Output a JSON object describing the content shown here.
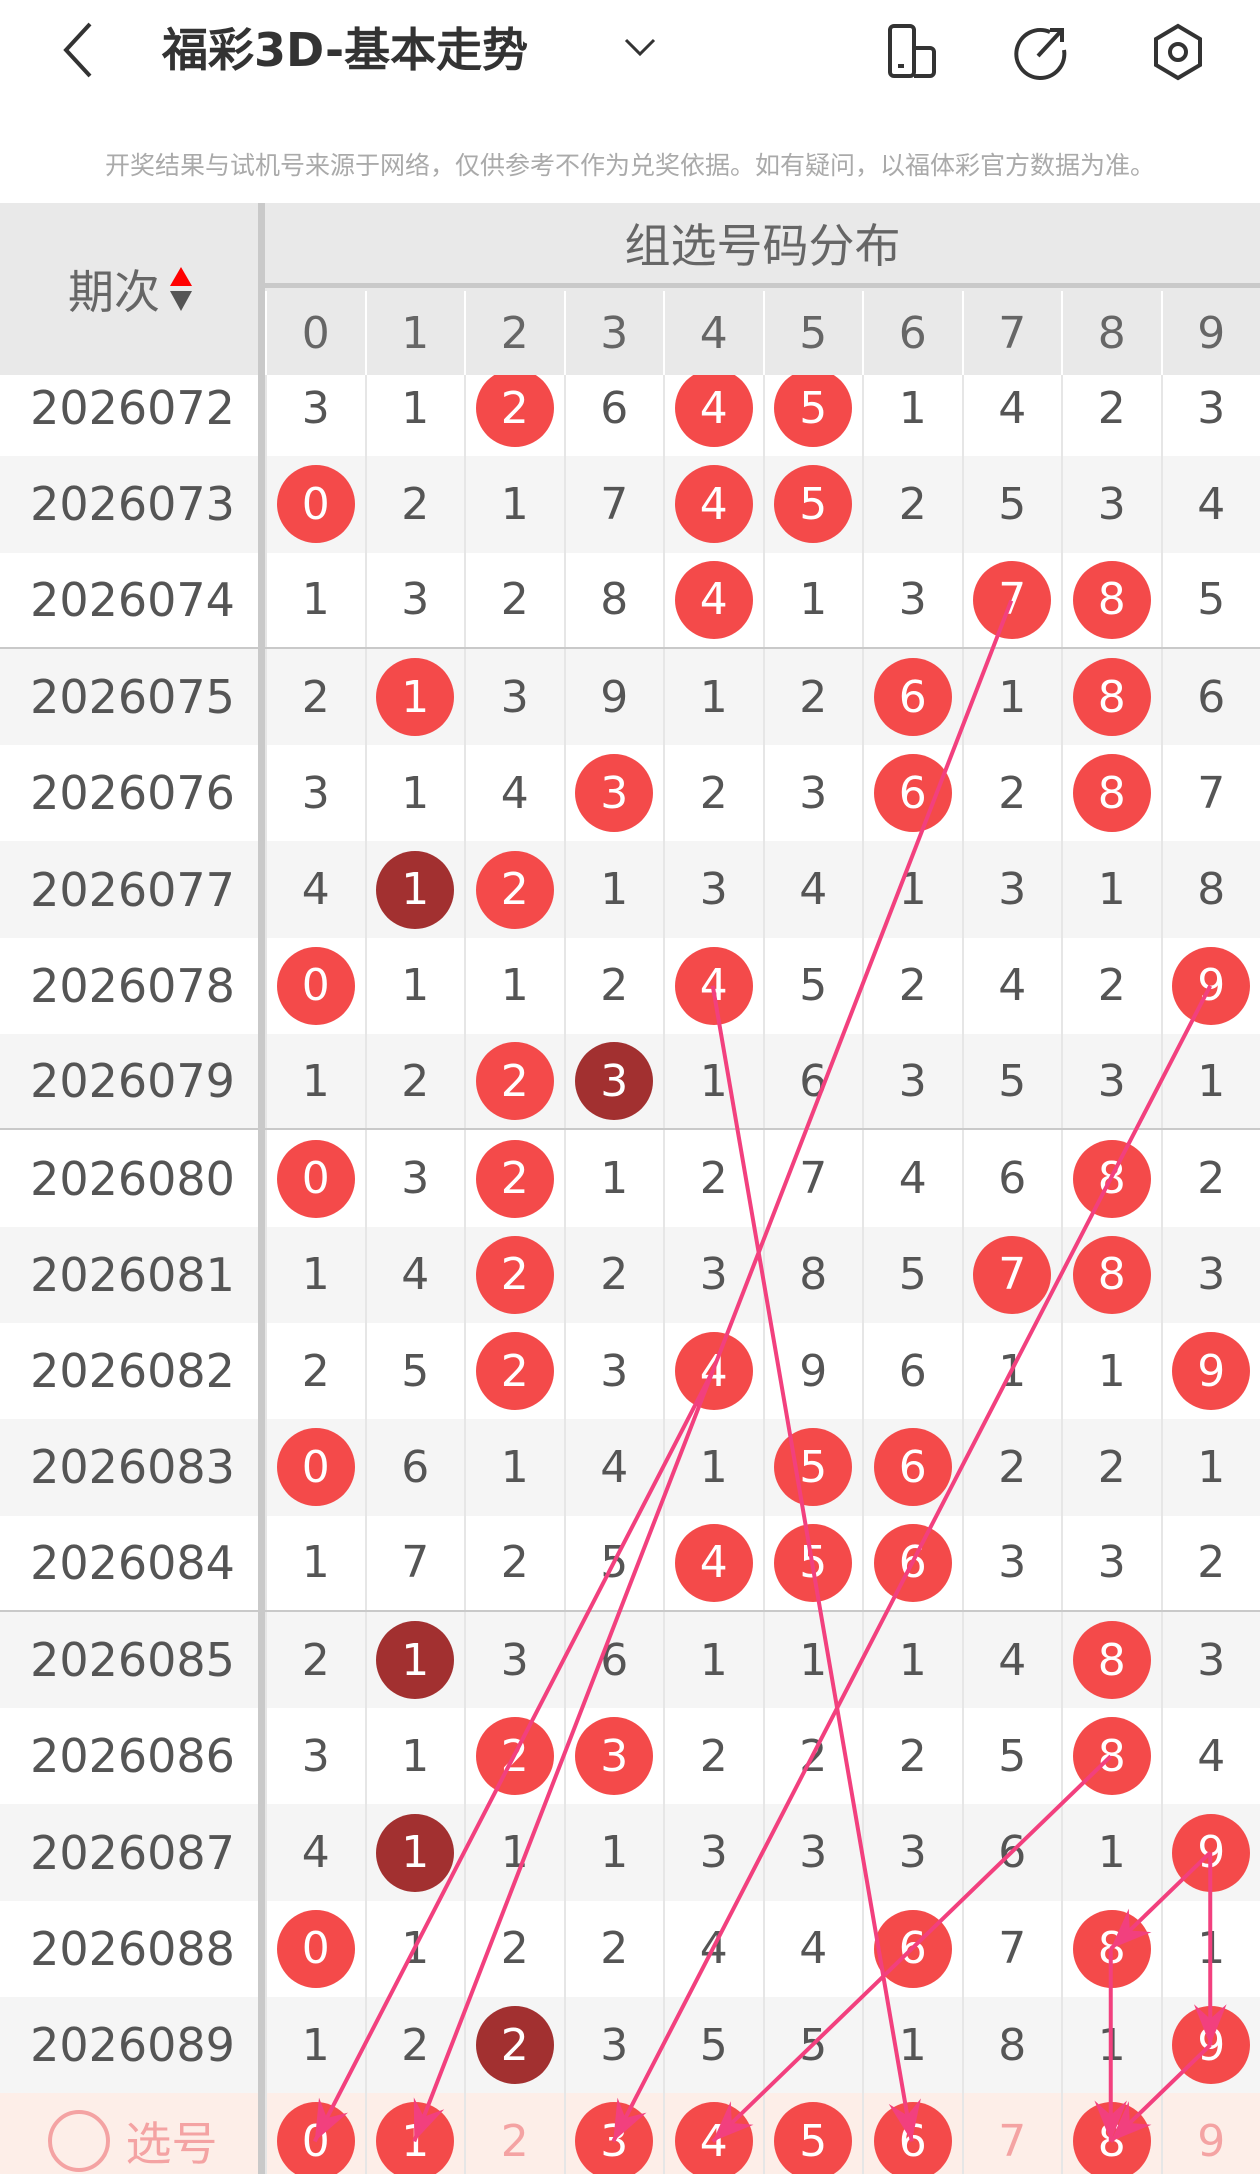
{
  "header": {
    "title": "福彩3D-基本走势",
    "back_icon": "chevron-left-icon",
    "dropdown_icon": "chevron-down-icon",
    "actions": [
      "device-icon",
      "share-icon",
      "settings-icon"
    ]
  },
  "notice": "开奖结果与试机号来源于网络，仅供参考不作为兑奖依据。如有疑问，以福体彩官方数据为准。",
  "table": {
    "period_header": "期次",
    "group_header": "组选号码分布",
    "digits": [
      "0",
      "1",
      "2",
      "3",
      "4",
      "5",
      "6",
      "7",
      "8",
      "9"
    ],
    "rows": [
      {
        "period": "2026072",
        "cells": [
          "3",
          "1",
          "2",
          "6",
          "4",
          "5",
          "1",
          "4",
          "2",
          "3"
        ],
        "hits": [
          2,
          4,
          5
        ],
        "dups": []
      },
      {
        "period": "2026073",
        "cells": [
          "0",
          "2",
          "1",
          "7",
          "4",
          "5",
          "2",
          "5",
          "3",
          "4"
        ],
        "hits": [
          0,
          4,
          5
        ],
        "dups": []
      },
      {
        "period": "2026074",
        "cells": [
          "1",
          "3",
          "2",
          "8",
          "4",
          "1",
          "3",
          "7",
          "8",
          "5"
        ],
        "hits": [
          4,
          7,
          8
        ],
        "dups": []
      },
      {
        "period": "2026075",
        "cells": [
          "2",
          "1",
          "3",
          "9",
          "1",
          "2",
          "6",
          "1",
          "8",
          "6"
        ],
        "hits": [
          1,
          6,
          8
        ],
        "dups": []
      },
      {
        "period": "2026076",
        "cells": [
          "3",
          "1",
          "4",
          "3",
          "2",
          "3",
          "6",
          "2",
          "8",
          "7"
        ],
        "hits": [
          3,
          6,
          8
        ],
        "dups": []
      },
      {
        "period": "2026077",
        "cells": [
          "4",
          "1",
          "2",
          "1",
          "3",
          "4",
          "1",
          "3",
          "1",
          "8"
        ],
        "hits": [
          2
        ],
        "dups": [
          1
        ]
      },
      {
        "period": "2026078",
        "cells": [
          "0",
          "1",
          "1",
          "2",
          "4",
          "5",
          "2",
          "4",
          "2",
          "9"
        ],
        "hits": [
          0,
          4,
          9
        ],
        "dups": []
      },
      {
        "period": "2026079",
        "cells": [
          "1",
          "2",
          "2",
          "3",
          "1",
          "6",
          "3",
          "5",
          "3",
          "1"
        ],
        "hits": [
          2
        ],
        "dups": [
          3
        ]
      },
      {
        "period": "2026080",
        "cells": [
          "0",
          "3",
          "2",
          "1",
          "2",
          "7",
          "4",
          "6",
          "8",
          "2"
        ],
        "hits": [
          0,
          2,
          8
        ],
        "dups": []
      },
      {
        "period": "2026081",
        "cells": [
          "1",
          "4",
          "2",
          "2",
          "3",
          "8",
          "5",
          "7",
          "8",
          "3"
        ],
        "hits": [
          2,
          7,
          8
        ],
        "dups": []
      },
      {
        "period": "2026082",
        "cells": [
          "2",
          "5",
          "2",
          "3",
          "4",
          "9",
          "6",
          "1",
          "1",
          "9"
        ],
        "hits": [
          2,
          4,
          9
        ],
        "dups": []
      },
      {
        "period": "2026083",
        "cells": [
          "0",
          "6",
          "1",
          "4",
          "1",
          "5",
          "6",
          "2",
          "2",
          "1"
        ],
        "hits": [
          0,
          5,
          6
        ],
        "dups": []
      },
      {
        "period": "2026084",
        "cells": [
          "1",
          "7",
          "2",
          "5",
          "4",
          "5",
          "6",
          "3",
          "3",
          "2"
        ],
        "hits": [
          4,
          5,
          6
        ],
        "dups": []
      },
      {
        "period": "2026085",
        "cells": [
          "2",
          "1",
          "3",
          "6",
          "1",
          "1",
          "1",
          "4",
          "8",
          "3"
        ],
        "hits": [
          8
        ],
        "dups": [
          1
        ]
      },
      {
        "period": "2026086",
        "cells": [
          "3",
          "1",
          "2",
          "3",
          "2",
          "2",
          "2",
          "5",
          "8",
          "4"
        ],
        "hits": [
          2,
          3,
          8
        ],
        "dups": []
      },
      {
        "period": "2026087",
        "cells": [
          "4",
          "1",
          "1",
          "1",
          "3",
          "3",
          "3",
          "6",
          "1",
          "9"
        ],
        "hits": [
          9
        ],
        "dups": [
          1
        ]
      },
      {
        "period": "2026088",
        "cells": [
          "0",
          "1",
          "2",
          "2",
          "4",
          "4",
          "6",
          "7",
          "8",
          "1"
        ],
        "hits": [
          0,
          6,
          8
        ],
        "dups": []
      },
      {
        "period": "2026089",
        "cells": [
          "1",
          "2",
          "2",
          "3",
          "5",
          "5",
          "1",
          "8",
          "1",
          "9"
        ],
        "hits": [
          9
        ],
        "dups": [
          2
        ]
      }
    ],
    "selection": {
      "label": "选号",
      "cells": [
        "0",
        "1",
        "2",
        "3",
        "4",
        "5",
        "6",
        "7",
        "8",
        "9"
      ],
      "selected": [
        0,
        1,
        3,
        4,
        5,
        6,
        8
      ]
    },
    "links": [
      {
        "from": [
          "2026074",
          7
        ],
        "to": [
          "选号",
          1
        ]
      },
      {
        "from": [
          "2026078",
          4
        ],
        "to": [
          "选号",
          6
        ]
      },
      {
        "from": [
          "2026078",
          9
        ],
        "to": [
          "选号",
          3
        ]
      },
      {
        "from": [
          "2026082",
          4
        ],
        "to": [
          "选号",
          0
        ]
      },
      {
        "from": [
          "2026086",
          8
        ],
        "to": [
          "选号",
          4
        ]
      },
      {
        "from": [
          "2026087",
          9
        ],
        "to": [
          "2026088",
          8
        ]
      },
      {
        "from": [
          "2026087",
          9
        ],
        "to": [
          "2026089",
          9
        ]
      },
      {
        "from": [
          "2026088",
          8
        ],
        "to": [
          "选号",
          8
        ]
      },
      {
        "from": [
          "2026089",
          9
        ],
        "to": [
          "选号",
          8
        ]
      }
    ]
  },
  "colors": {
    "hit": "#f44a4a",
    "duplicate": "#a23030",
    "link": "#f2407e",
    "selection_bg": "#fdeee8"
  }
}
